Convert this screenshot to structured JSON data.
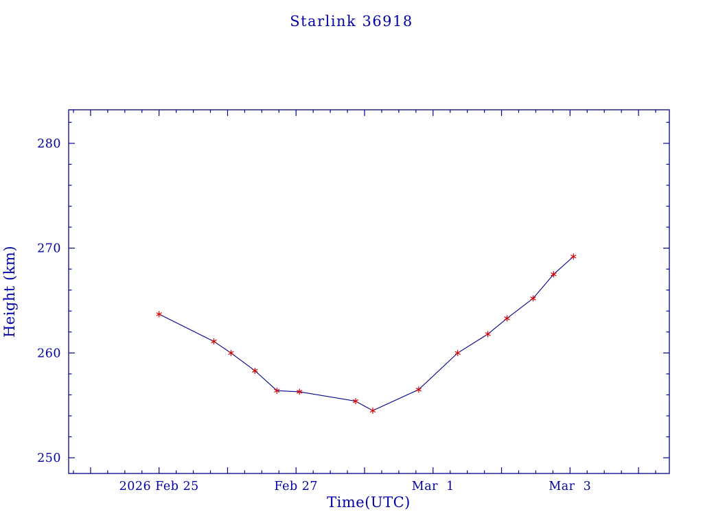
{
  "chart_data": {
    "type": "line",
    "title": "Starlink 36918",
    "xlabel": "Time(UTC)",
    "ylabel": "Height (km)",
    "x_unit": "days since 2026 Feb 25 00:00 UTC",
    "x": [
      0.0,
      0.8,
      1.05,
      1.4,
      1.72,
      2.05,
      2.87,
      3.12,
      3.79,
      4.36,
      4.8,
      5.08,
      5.46,
      5.76,
      6.05
    ],
    "y": [
      263.7,
      261.1,
      260.0,
      258.3,
      256.4,
      256.3,
      255.4,
      254.5,
      256.5,
      260.0,
      261.8,
      263.3,
      265.2,
      267.5,
      269.2
    ],
    "series_name": "height_km",
    "marker": "asterisk",
    "grid": false,
    "legend": "none",
    "xlim": [
      -1.32,
      7.45
    ],
    "ylim": [
      248.5,
      283.2
    ],
    "x_minor_step": 0.25,
    "x_major_step": 1,
    "y_minor_step": 2,
    "y_major_ticks": [
      250,
      260,
      270,
      280
    ],
    "x_tick_labels": [
      {
        "t": 0,
        "label": "2026 Feb 25"
      },
      {
        "t": 2,
        "label": "Feb 27"
      },
      {
        "t": 4,
        "label": "Mar  1"
      },
      {
        "t": 6,
        "label": "Mar  3"
      }
    ],
    "colors": {
      "axis": "#00008b",
      "line": "#00008b",
      "marker": "#d40000",
      "text": "#0000a8",
      "background": "#ffffff"
    }
  }
}
